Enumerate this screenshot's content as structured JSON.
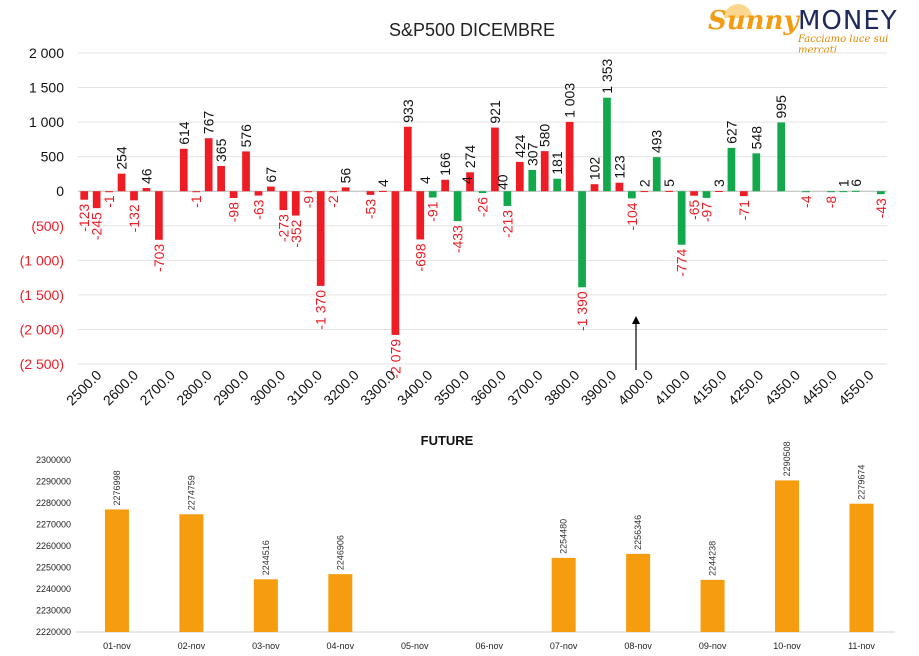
{
  "brand": {
    "name_part1": "Sunny",
    "name_part2": "MONEY",
    "tagline": "Facciamo luce sui mercati"
  },
  "colors": {
    "negative": "#ee1c25",
    "positive": "#12a84b",
    "future": "#f59d0e",
    "axis_red": "#ee1c25",
    "text": "#222222"
  },
  "chart_data": [
    {
      "type": "bar",
      "title": "S&P500 DICEMBRE",
      "ylim": [
        -2500,
        2000
      ],
      "yticks": [
        {
          "v": 2000,
          "label": "2 000"
        },
        {
          "v": 1500,
          "label": "1 500"
        },
        {
          "v": 1000,
          "label": "1 000"
        },
        {
          "v": 500,
          "label": "500"
        },
        {
          "v": 0,
          "label": "0"
        },
        {
          "v": -500,
          "label": "(500)"
        },
        {
          "v": -1000,
          "label": "(1 000)"
        },
        {
          "v": -1500,
          "label": "(1 500)"
        },
        {
          "v": -2000,
          "label": "(2 000)"
        },
        {
          "v": -2500,
          "label": "(2 500)"
        }
      ],
      "xtick_labels": [
        "2500.0",
        "2600.0",
        "2700.0",
        "2800.0",
        "2900.0",
        "3000.0",
        "3100.0",
        "3200.0",
        "3300.0",
        "3400.0",
        "3500.0",
        "3600.0",
        "3700.0",
        "3800.0",
        "3900.0",
        "4000.0",
        "4100.0",
        "4150.0",
        "4250.0",
        "4350.0",
        "4450.0",
        "4550.0"
      ],
      "bars": [
        {
          "label": "-123",
          "red": -123,
          "green": null
        },
        {
          "label": "-245",
          "red": -245,
          "green": null
        },
        {
          "label": "-1",
          "red": -1,
          "green": null
        },
        {
          "label": "254",
          "red": 254,
          "green": null
        },
        {
          "label": "-132",
          "red": -132,
          "green": null
        },
        {
          "label": "46",
          "red": 46,
          "green": null
        },
        {
          "label": "-703",
          "red": -703,
          "green": null
        },
        {
          "label": "",
          "red": null,
          "green": null
        },
        {
          "label": "614",
          "red": 614,
          "green": null
        },
        {
          "label": "-1",
          "red": -1,
          "green": null
        },
        {
          "label": "767",
          "red": 767,
          "green": null
        },
        {
          "label": "365",
          "red": 365,
          "green": null
        },
        {
          "label": "-98",
          "red": -98,
          "green": null
        },
        {
          "label": "576",
          "red": 576,
          "green": null
        },
        {
          "label": "-63",
          "red": -63,
          "green": null
        },
        {
          "label": "67",
          "red": 67,
          "green": null
        },
        {
          "label": "-273",
          "red": -273,
          "green": null
        },
        {
          "label": "-352",
          "red": -352,
          "green": null
        },
        {
          "label": "-9",
          "red": -9,
          "green": null
        },
        {
          "label": "-1 370",
          "red": -1370,
          "green": null
        },
        {
          "label": "-2",
          "red": -2,
          "green": null
        },
        {
          "label": "56",
          "red": 56,
          "green": null
        },
        {
          "label": "",
          "red": null,
          "green": null
        },
        {
          "label": "-53",
          "red": -53,
          "green": null
        },
        {
          "label": "4",
          "red": 4,
          "green": null
        },
        {
          "label": "-2 079",
          "red": -2079,
          "green": null
        },
        {
          "label": "933",
          "red": 933,
          "green": null
        },
        {
          "label": "-698",
          "red": -698,
          "green": null
        },
        {
          "label": "-91",
          "red": null,
          "green": -91
        },
        {
          "label": "166",
          "red": 166,
          "green": null
        },
        {
          "label": "-433",
          "red": null,
          "green": -433
        },
        {
          "label": "274",
          "red": 274,
          "green": null
        },
        {
          "label": "-26",
          "red": null,
          "green": -26
        },
        {
          "label": "921",
          "red": 921,
          "green": null
        },
        {
          "label": "-213",
          "red": null,
          "green": -213
        },
        {
          "label": "424",
          "red": 424,
          "green": null
        },
        {
          "label": "307",
          "red": null,
          "green": 307
        },
        {
          "label": "580",
          "red": 580,
          "green": null
        },
        {
          "label": "181",
          "red": null,
          "green": 181
        },
        {
          "label": "1 003",
          "red": 1003,
          "green": null
        },
        {
          "label": "-1 390",
          "red": null,
          "green": -1390
        },
        {
          "label": "102",
          "red": 102,
          "green": null
        },
        {
          "label": "1 353",
          "red": null,
          "green": 1353
        },
        {
          "label": "123",
          "red": 123,
          "green": null
        },
        {
          "label": "-104",
          "red": null,
          "green": -104
        },
        {
          "label": "2",
          "red": 2,
          "green": null
        },
        {
          "label": "493",
          "red": null,
          "green": 493
        },
        {
          "label": "5",
          "red": 5,
          "green": null
        },
        {
          "label": "-774",
          "red": null,
          "green": -774
        },
        {
          "label": "-65",
          "red": -65,
          "green": null
        },
        {
          "label": "-97",
          "red": null,
          "green": -97
        },
        {
          "label": "3",
          "red": 3,
          "green": null
        },
        {
          "label": "627",
          "red": null,
          "green": 627
        },
        {
          "label": "-71",
          "red": -71,
          "green": null
        },
        {
          "label": "548",
          "red": null,
          "green": 548
        },
        {
          "label": "",
          "red": null,
          "green": null
        },
        {
          "label": "995",
          "red": null,
          "green": 995
        },
        {
          "label": "",
          "red": null,
          "green": null
        },
        {
          "label": "-4",
          "red": null,
          "green": -4
        },
        {
          "label": "",
          "red": null,
          "green": null
        },
        {
          "label": "-8",
          "red": null,
          "green": -8
        },
        {
          "label": "1",
          "red": null,
          "green": 1
        },
        {
          "label": "6",
          "red": null,
          "green": 6
        },
        {
          "label": "",
          "red": null,
          "green": null
        },
        {
          "label": "-43",
          "red": null,
          "green": -43
        }
      ],
      "extra_labels": [
        "4",
        "4",
        "40"
      ],
      "annotation": "arrow pointing up at 4000.0",
      "grid": true
    },
    {
      "type": "bar",
      "title": "FUTURE",
      "ylim": [
        2220000,
        2300000
      ],
      "yticks": [
        2220000,
        2230000,
        2240000,
        2250000,
        2260000,
        2270000,
        2280000,
        2290000,
        2300000
      ],
      "categories": [
        "01-nov",
        "02-nov",
        "03-nov",
        "04-nov",
        "05-nov",
        "06-nov",
        "07-nov",
        "08-nov",
        "09-nov",
        "10-nov",
        "11-nov"
      ],
      "values": [
        2276998,
        2274759,
        2244516,
        2246906,
        null,
        null,
        2254480,
        2256346,
        2244238,
        2290508,
        2279674
      ],
      "grid": false
    }
  ]
}
